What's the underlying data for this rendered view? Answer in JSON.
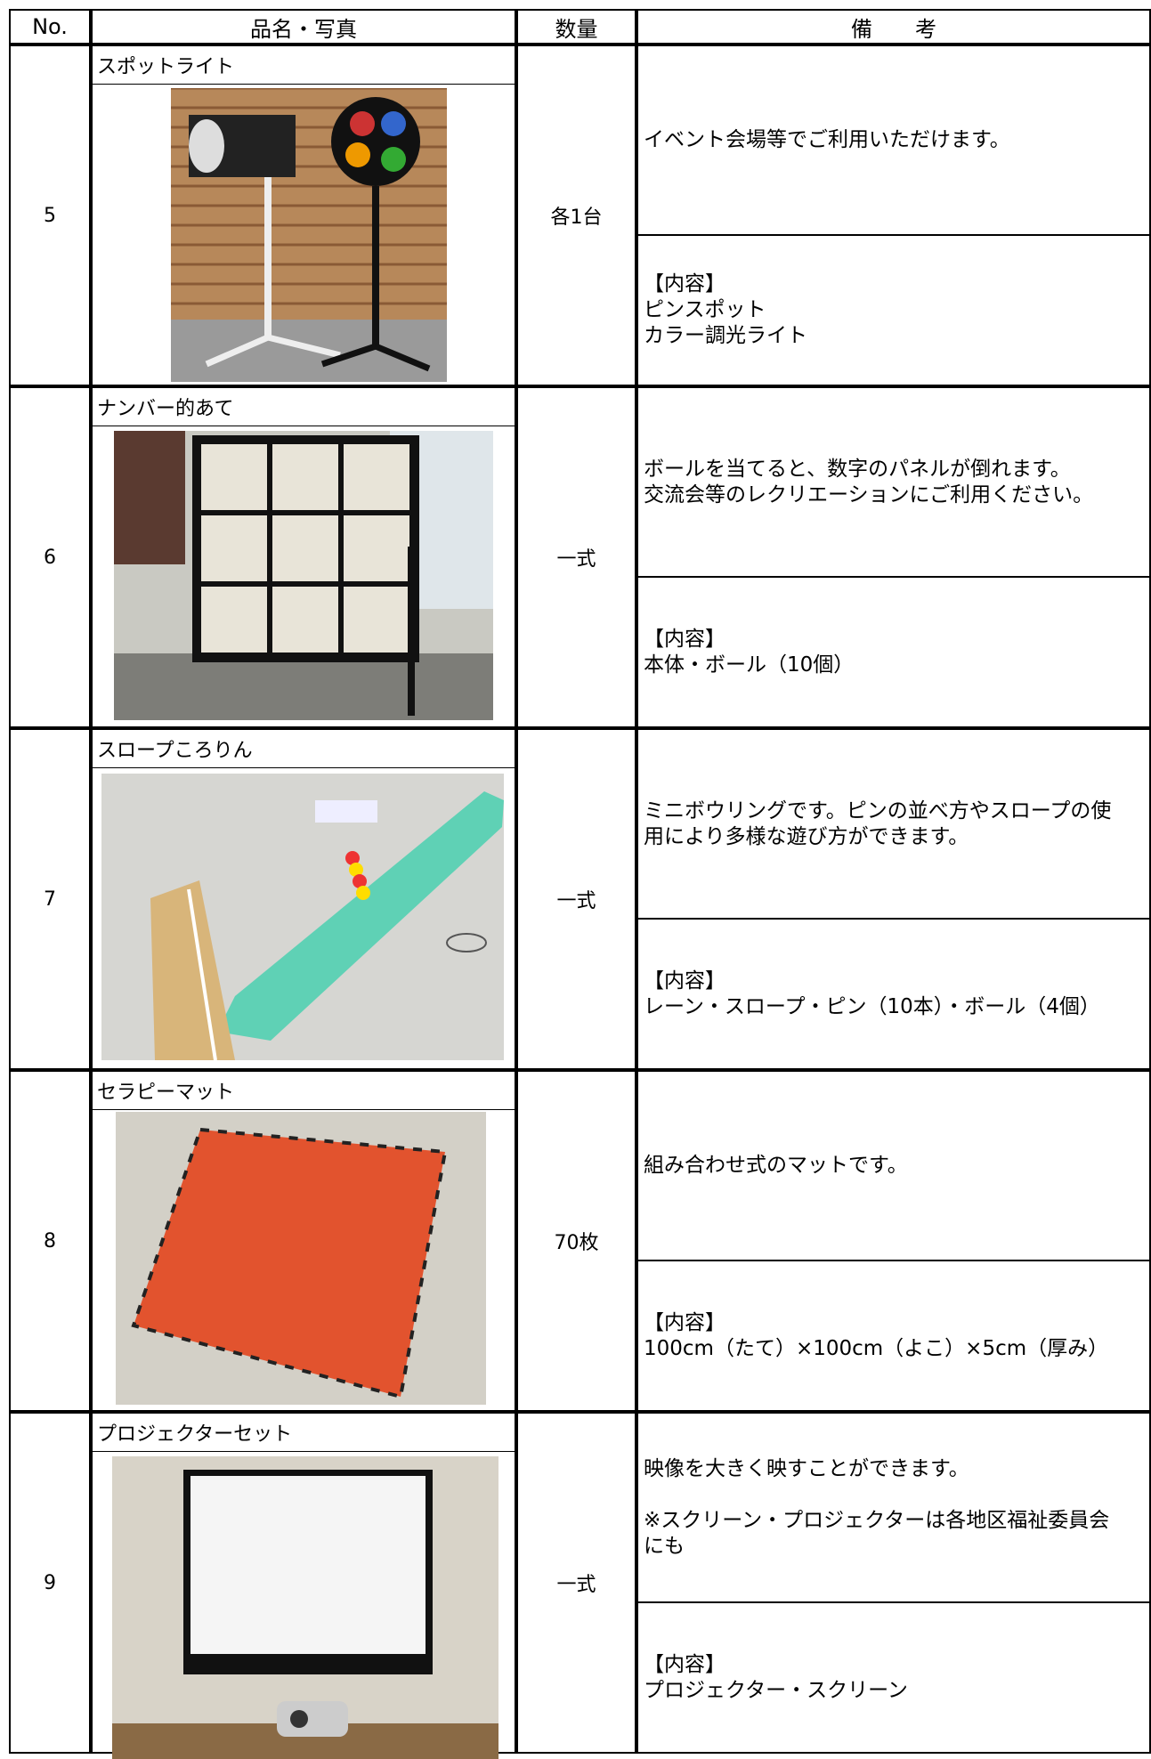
{
  "header": {
    "no": "No.",
    "item": "品名・写真",
    "qty": "数量",
    "note": "備　　考"
  },
  "rows": [
    {
      "no": "5",
      "name": "スポットライト",
      "qty": "各1台",
      "note": [
        "イベント会場等でご利用いただけます。"
      ],
      "contents_label": "【内容】",
      "contents": [
        "ピンスポット",
        "カラー調光ライト"
      ]
    },
    {
      "no": "6",
      "name": "ナンバー的あて",
      "qty": "一式",
      "note": [
        "ボールを当てると、数字のパネルが倒れます。",
        "交流会等のレクリエーションにご利用ください。"
      ],
      "contents_label": "【内容】",
      "contents": [
        "本体・ボール（10個）"
      ]
    },
    {
      "no": "7",
      "name": "スロープころりん",
      "qty": "一式",
      "note": [
        "ミニボウリングです。ピンの並べ方やスロープの使",
        "用により多様な遊び方ができます。"
      ],
      "contents_label": "【内容】",
      "contents": [
        "レーン・スロープ・ピン（10本）・ボール（4個）"
      ]
    },
    {
      "no": "8",
      "name": "セラピーマット",
      "qty": "70枚",
      "note": [
        "組み合わせ式のマットです。"
      ],
      "contents_label": "【内容】",
      "contents": [
        "100cm（たて）×100cm（よこ）×5cm（厚み）"
      ]
    },
    {
      "no": "9",
      "name": "プロジェクターセット",
      "qty": "一式",
      "note": [
        "映像を大きく映すことができます。",
        "",
        "※スクリーン・プロジェクターは各地区福祉委員会",
        "にも"
      ],
      "contents_label": "【内容】",
      "contents": [
        "プロジェクター・スクリーン"
      ]
    }
  ]
}
